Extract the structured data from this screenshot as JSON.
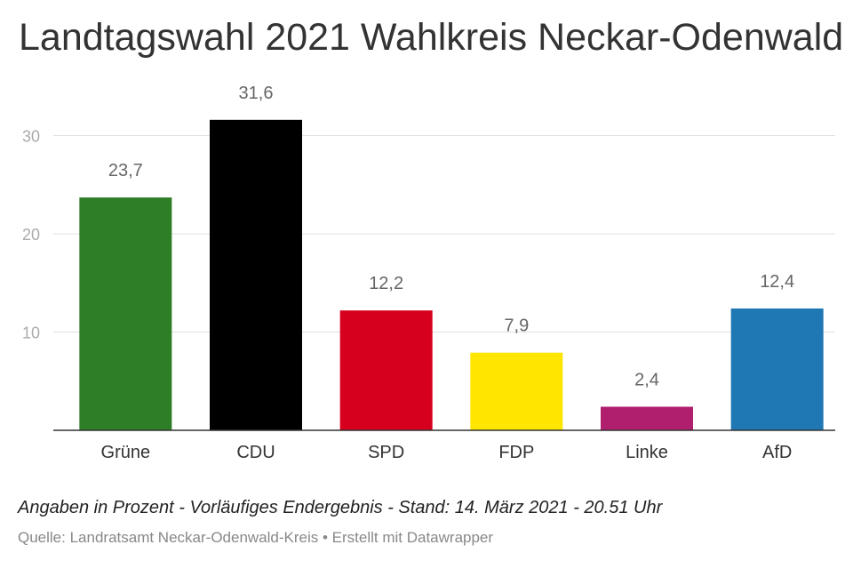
{
  "header": {
    "title": "Landtagswahl 2021 Wahlkreis Neckar-Odenwald"
  },
  "chart_data": {
    "type": "bar",
    "title": "Landtagswahl 2021 Wahlkreis Neckar-Odenwald",
    "xlabel": "",
    "ylabel": "",
    "categories": [
      "Grüne",
      "CDU",
      "SPD",
      "FDP",
      "Linke",
      "AfD"
    ],
    "values": [
      23.7,
      31.6,
      12.2,
      7.9,
      2.4,
      12.4
    ],
    "value_labels": [
      "23,7",
      "31,6",
      "12,2",
      "7,9",
      "2,4",
      "12,4"
    ],
    "colors": [
      "#2e7d27",
      "#000000",
      "#d6001e",
      "#ffe600",
      "#b01f6e",
      "#1f77b4"
    ],
    "ylim": [
      0,
      30
    ],
    "yticks": [
      10,
      20,
      30
    ],
    "ytick_labels": [
      "10",
      "20",
      "30"
    ],
    "grid": true,
    "legend": "none"
  },
  "footer": {
    "note": "Angaben in Prozent - Vorläufiges Endergebnis - Stand: 14. März 2021 - 20.51 Uhr",
    "source": "Quelle: Landratsamt Neckar-Odenwald-Kreis • Erstellt mit Datawrapper"
  }
}
